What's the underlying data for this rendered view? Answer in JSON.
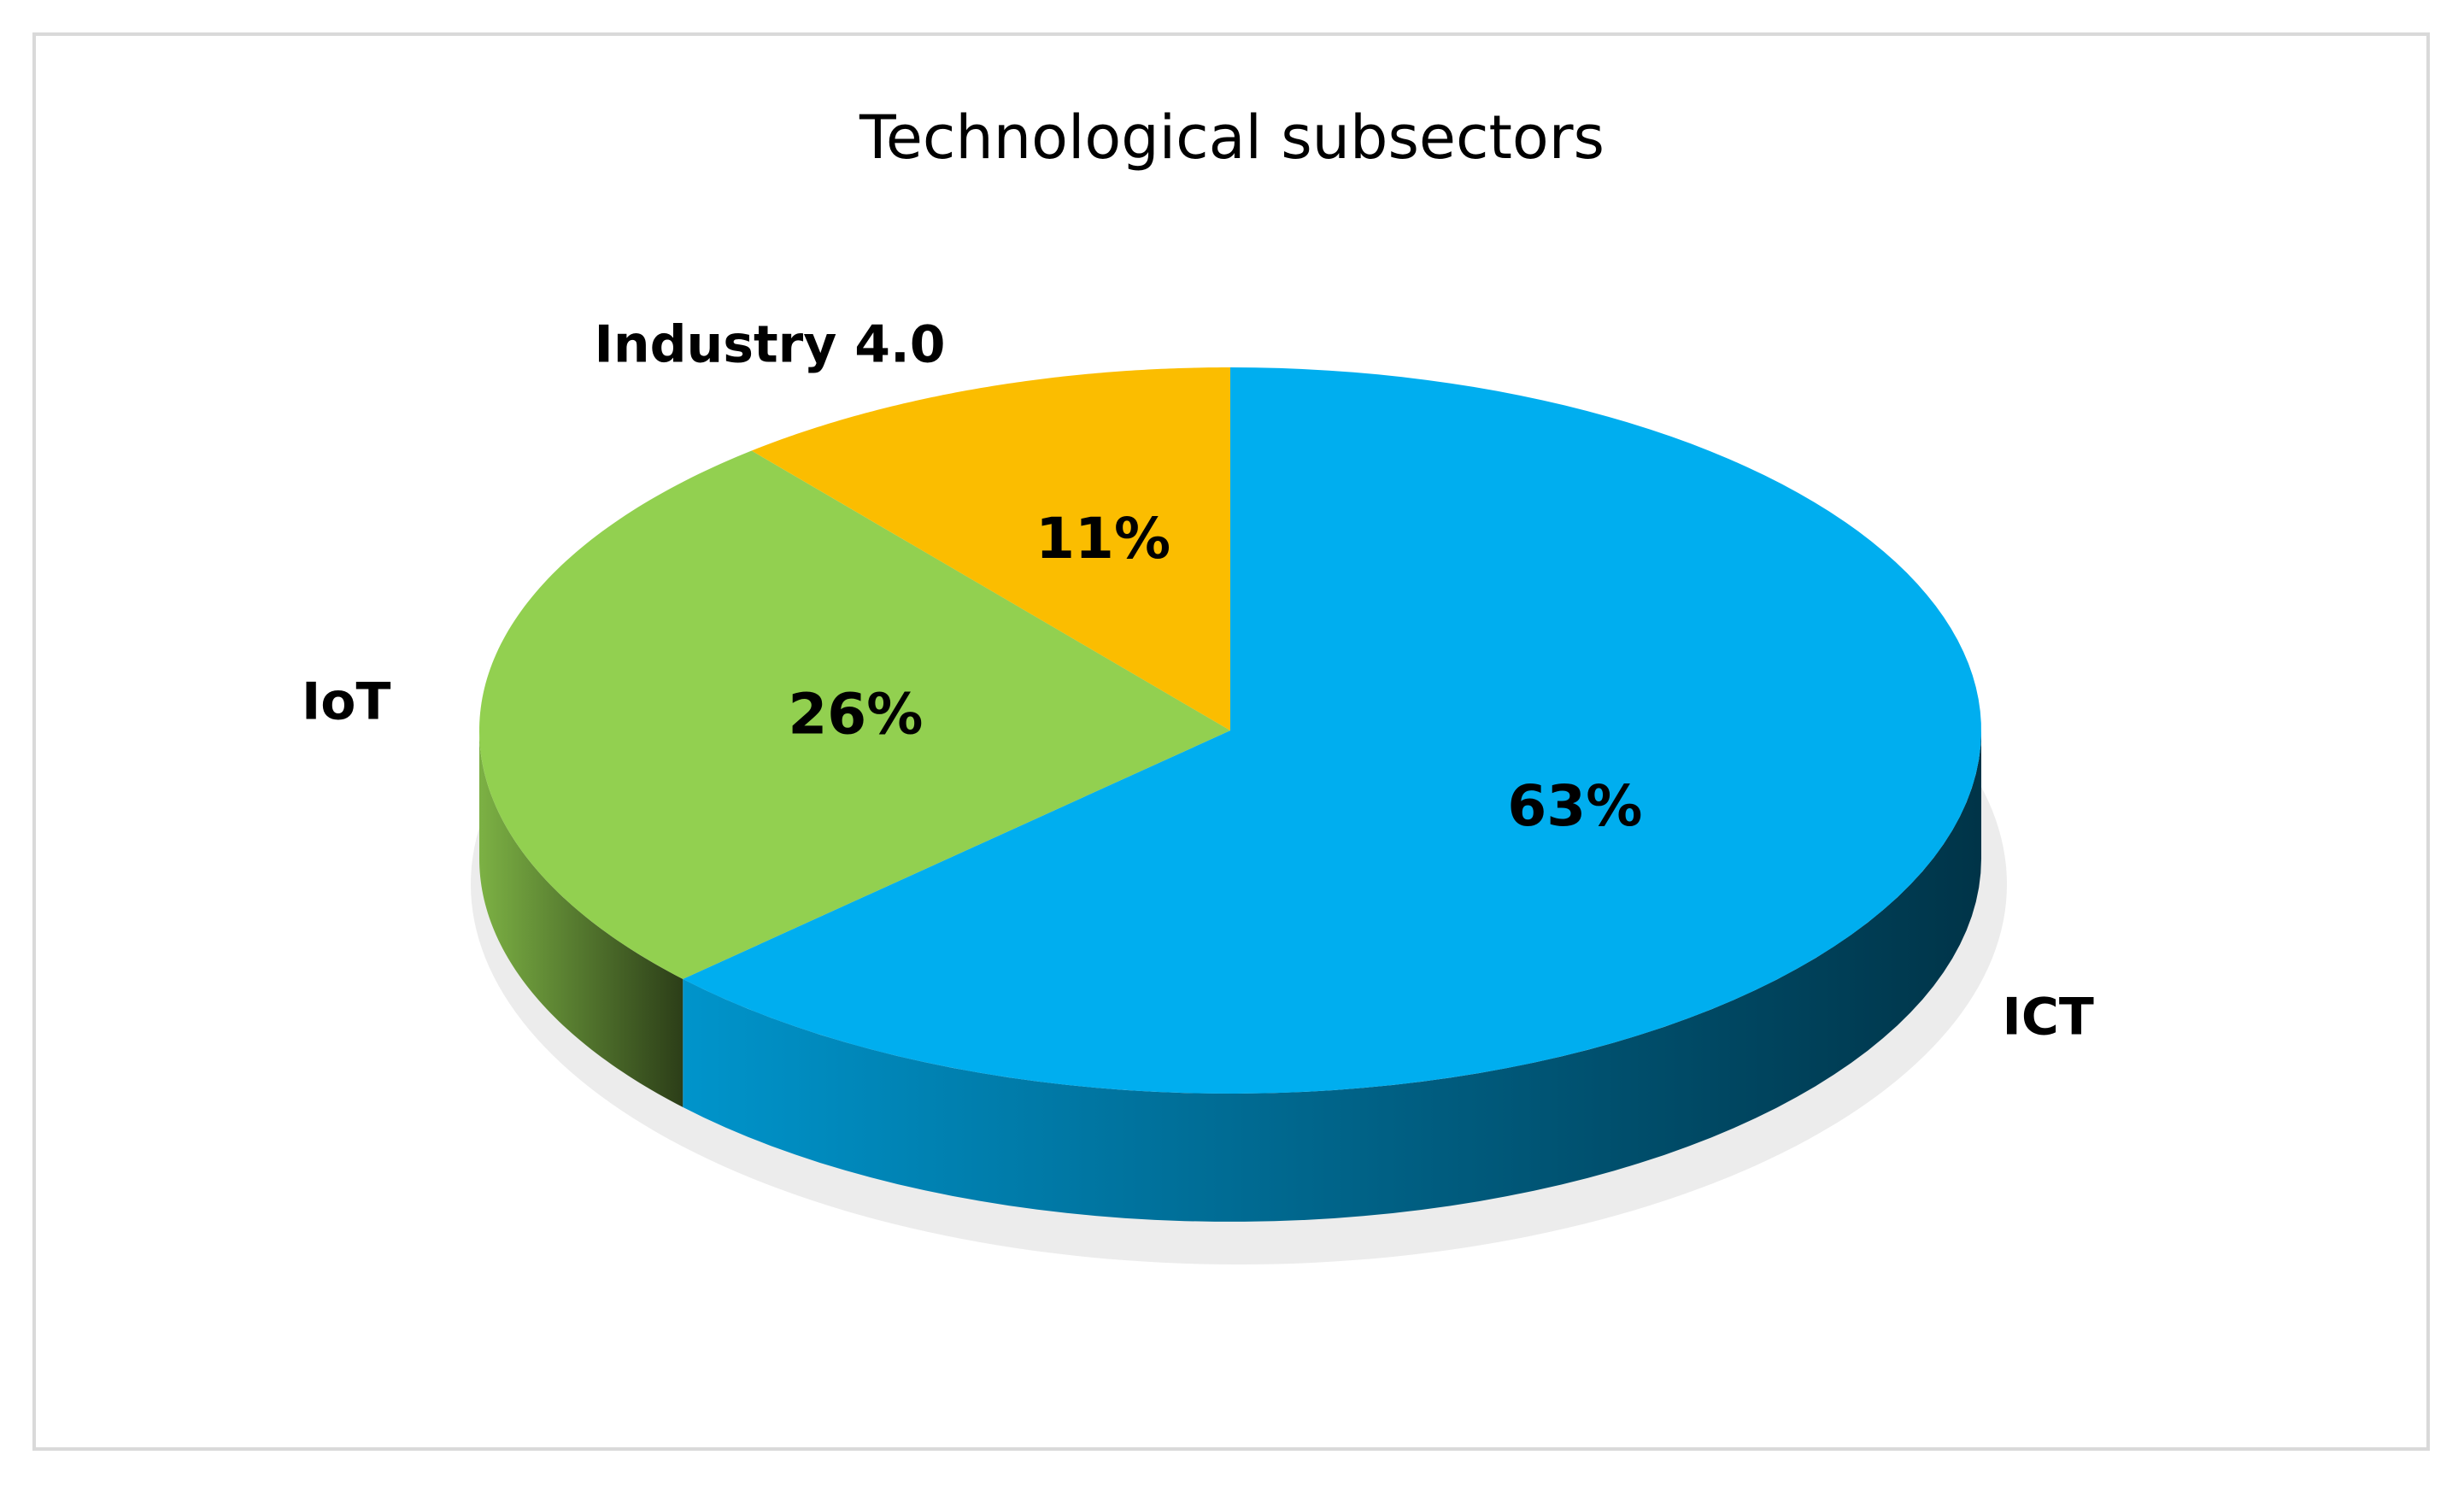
{
  "chart_data": {
    "type": "pie",
    "title": "Technological subsectors",
    "categories": [
      "ICT",
      "IoT",
      "Industry 4.0"
    ],
    "values": [
      63,
      26,
      11
    ],
    "value_labels": [
      "63%",
      "26%",
      "11%"
    ],
    "colors": [
      "#00aeef",
      "#92d050",
      "#fbbd00"
    ]
  }
}
